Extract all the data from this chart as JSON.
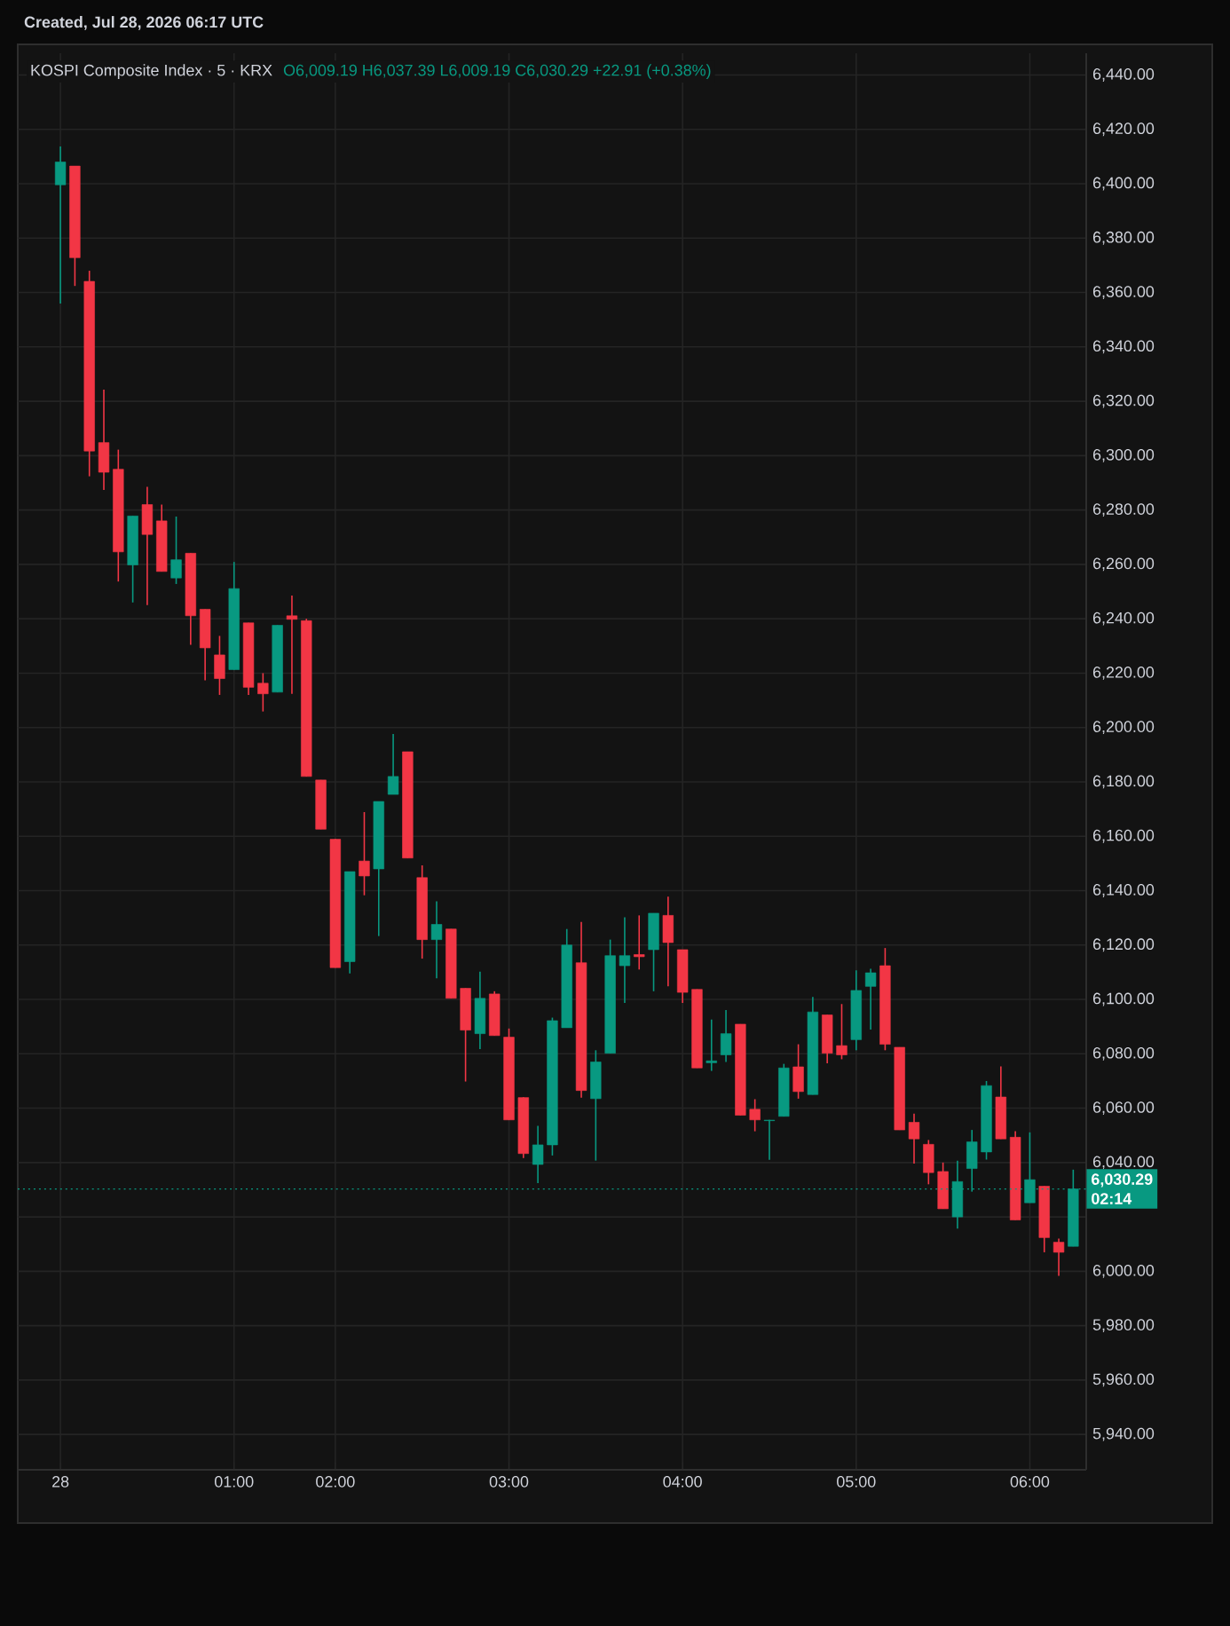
{
  "chart_data": {
    "type": "candlestick",
    "title": "KOSPI Composite Index · 5 · KRX",
    "subtitle": "O6,009.19 H6,037.39 L6,009.19 C6,030.29 +22.91 (+0.38%)",
    "annotations": [
      "Created, Jul 28, 2026 06:17 UTC",
      "02:14"
    ],
    "categories": [
      "28",
      null,
      null,
      null,
      null,
      null,
      null,
      null,
      null,
      null,
      null,
      null,
      "01:00",
      null,
      null,
      null,
      null,
      null,
      null,
      "02:00",
      null,
      null,
      null,
      null,
      null,
      null,
      null,
      null,
      null,
      null,
      null,
      "03:00",
      null,
      null,
      null,
      null,
      null,
      null,
      null,
      null,
      null,
      null,
      null,
      "04:00",
      null,
      null,
      null,
      null,
      null,
      null,
      null,
      null,
      null,
      null,
      null,
      "05:00",
      null,
      null,
      null,
      null,
      null,
      null,
      null,
      null,
      null,
      null,
      null,
      "06:00",
      null,
      null,
      null
    ],
    "ohlc": [
      [
        6399.6,
        6413.7,
        6355.9,
        6408.0
      ],
      [
        6406.5,
        6406.5,
        6362.4,
        6372.8
      ],
      [
        6364.1,
        6368.0,
        6292.4,
        6301.7
      ],
      [
        6304.8,
        6324.3,
        6287.4,
        6293.9
      ],
      [
        6295.0,
        6302.2,
        6253.7,
        6264.6
      ],
      [
        6259.8,
        6277.8,
        6246.0,
        6277.8
      ],
      [
        6282.0,
        6288.5,
        6245.0,
        6271.0
      ],
      [
        6276.0,
        6282.0,
        6257.4,
        6257.4
      ],
      [
        6255.0,
        6277.6,
        6252.8,
        6261.7
      ],
      [
        6264.1,
        6264.1,
        6230.4,
        6241.1
      ],
      [
        6243.5,
        6243.5,
        6217.4,
        6229.3
      ],
      [
        6226.7,
        6233.7,
        6212.0,
        6218.0
      ],
      [
        6221.3,
        6260.9,
        6221.3,
        6251.1
      ],
      [
        6238.5,
        6238.5,
        6212.0,
        6214.8
      ],
      [
        6216.3,
        6220.0,
        6205.9,
        6212.4
      ],
      [
        6213.0,
        6237.6,
        6213.0,
        6237.6
      ],
      [
        6241.1,
        6248.5,
        6212.4,
        6239.8
      ],
      [
        6239.3,
        6240.0,
        6182.0,
        6182.0
      ],
      [
        6180.7,
        6180.7,
        6162.6,
        6162.6
      ],
      [
        6158.9,
        6159.0,
        6111.7,
        6111.7
      ],
      [
        6113.9,
        6147.0,
        6109.6,
        6147.0
      ],
      [
        6150.9,
        6168.9,
        6138.3,
        6145.4
      ],
      [
        6148.0,
        6172.8,
        6123.3,
        6172.8
      ],
      [
        6175.4,
        6197.6,
        6175.4,
        6182.0
      ],
      [
        6191.1,
        6191.1,
        6152.0,
        6152.0
      ],
      [
        6144.8,
        6149.3,
        6115.0,
        6122.0
      ],
      [
        6122.0,
        6136.1,
        6107.8,
        6127.6
      ],
      [
        6125.9,
        6125.9,
        6100.4,
        6100.4
      ],
      [
        6104.1,
        6104.1,
        6069.8,
        6088.7
      ],
      [
        6087.4,
        6110.2,
        6081.7,
        6100.4
      ],
      [
        6102.0,
        6103.0,
        6086.7,
        6086.7
      ],
      [
        6086.1,
        6089.3,
        6055.7,
        6055.7
      ],
      [
        6063.9,
        6064.0,
        6041.7,
        6043.3
      ],
      [
        6039.3,
        6053.5,
        6032.4,
        6046.5
      ],
      [
        6046.5,
        6093.3,
        6042.6,
        6092.2
      ],
      [
        6089.6,
        6125.9,
        6089.6,
        6120.0
      ],
      [
        6113.5,
        6128.5,
        6063.9,
        6066.5
      ],
      [
        6063.5,
        6081.3,
        6040.7,
        6077.0
      ],
      [
        6080.2,
        6122.0,
        6080.2,
        6116.1
      ],
      [
        6112.4,
        6130.2,
        6098.7,
        6116.1
      ],
      [
        6116.5,
        6130.9,
        6111.0,
        6115.7
      ],
      [
        6118.3,
        6131.7,
        6103.0,
        6131.7
      ],
      [
        6130.9,
        6137.8,
        6104.8,
        6120.9
      ],
      [
        6118.3,
        6118.3,
        6098.7,
        6102.6
      ],
      [
        6103.7,
        6103.7,
        6074.8,
        6074.8
      ],
      [
        6076.7,
        6092.6,
        6073.7,
        6077.4
      ],
      [
        6079.6,
        6096.1,
        6077.0,
        6087.4
      ],
      [
        6090.9,
        6090.9,
        6057.4,
        6057.4
      ],
      [
        6059.6,
        6063.3,
        6051.5,
        6055.7
      ],
      [
        6055.4,
        6055.7,
        6041.0,
        6055.6
      ],
      [
        6057.0,
        6076.3,
        6057.0,
        6074.8
      ],
      [
        6075.2,
        6083.5,
        6063.5,
        6066.1
      ],
      [
        6065.0,
        6100.9,
        6065.0,
        6095.4
      ],
      [
        6094.3,
        6094.3,
        6076.5,
        6080.2
      ],
      [
        6083.0,
        6098.3,
        6078.0,
        6079.6
      ],
      [
        6085.2,
        6110.7,
        6081.3,
        6103.3
      ],
      [
        6104.8,
        6111.3,
        6088.9,
        6109.8
      ],
      [
        6112.4,
        6118.9,
        6081.3,
        6083.5
      ],
      [
        6082.4,
        6082.4,
        6052.0,
        6052.0
      ],
      [
        6054.8,
        6058.0,
        6039.6,
        6048.7
      ],
      [
        6046.7,
        6048.3,
        6032.0,
        6036.3
      ],
      [
        6036.7,
        6040.0,
        6023.0,
        6023.0
      ],
      [
        6020.0,
        6040.7,
        6015.7,
        6033.0
      ],
      [
        6037.8,
        6052.0,
        6029.3,
        6047.6
      ],
      [
        6043.9,
        6070.0,
        6041.1,
        6068.3
      ],
      [
        6064.1,
        6075.4,
        6048.7,
        6048.7
      ],
      [
        6049.3,
        6051.5,
        6018.9,
        6018.9
      ],
      [
        6025.2,
        6051.1,
        6025.2,
        6033.7
      ],
      [
        6031.3,
        6031.3,
        6007.0,
        6012.4
      ],
      [
        6010.7,
        6012.0,
        5998.3,
        6007.0
      ],
      [
        6009.19,
        6037.39,
        6009.19,
        6030.29
      ]
    ],
    "colors": [
      "#089981",
      "#f23645",
      "#f23645",
      "#f23645",
      "#f23645",
      "#089981",
      "#f23645",
      "#f23645",
      "#089981",
      "#f23645",
      "#f23645",
      "#f23645",
      "#089981",
      "#f23645",
      "#f23645",
      "#089981",
      "#f23645",
      "#f23645",
      "#f23645",
      "#f23645",
      "#089981",
      "#f23645",
      "#089981",
      "#089981",
      "#f23645",
      "#f23645",
      "#089981",
      "#f23645",
      "#f23645",
      "#089981",
      "#f23645",
      "#f23645",
      "#f23645",
      "#089981",
      "#089981",
      "#089981",
      "#f23645",
      "#089981",
      "#089981",
      "#089981",
      "#f23645",
      "#089981",
      "#f23645",
      "#f23645",
      "#f23645",
      "#089981",
      "#089981",
      "#f23645",
      "#f23645",
      "#089981",
      "#089981",
      "#f23645",
      "#089981",
      "#f23645",
      "#f23645",
      "#089981",
      "#089981",
      "#f23645",
      "#f23645",
      "#f23645",
      "#f23645",
      "#f23645",
      "#089981",
      "#089981",
      "#089981",
      "#f23645",
      "#f23645",
      "#089981",
      "#f23645",
      "#f23645",
      "#089981"
    ],
    "ylim": [
      5927,
      6448
    ],
    "yticks": [
      {
        "value": 5940,
        "label": "5,940.00"
      },
      {
        "value": 5960,
        "label": "5,960.00"
      },
      {
        "value": 5980,
        "label": "5,980.00"
      },
      {
        "value": 6000,
        "label": "6,000.00"
      },
      {
        "value": 6020,
        "label": null
      },
      {
        "value": 6040,
        "label": "6,040.00"
      },
      {
        "value": 6060,
        "label": "6,060.00"
      },
      {
        "value": 6080,
        "label": "6,080.00"
      },
      {
        "value": 6100,
        "label": "6,100.00"
      },
      {
        "value": 6120,
        "label": "6,120.00"
      },
      {
        "value": 6140,
        "label": "6,140.00"
      },
      {
        "value": 6160,
        "label": "6,160.00"
      },
      {
        "value": 6180,
        "label": "6,180.00"
      },
      {
        "value": 6200,
        "label": "6,200.00"
      },
      {
        "value": 6220,
        "label": "6,220.00"
      },
      {
        "value": 6240,
        "label": "6,240.00"
      },
      {
        "value": 6260,
        "label": "6,260.00"
      },
      {
        "value": 6280,
        "label": "6,280.00"
      },
      {
        "value": 6300,
        "label": "6,300.00"
      },
      {
        "value": 6320,
        "label": "6,320.00"
      },
      {
        "value": 6340,
        "label": "6,340.00"
      },
      {
        "value": 6360,
        "label": "6,360.00"
      },
      {
        "value": 6380,
        "label": "6,380.00"
      },
      {
        "value": 6400,
        "label": "6,400.00"
      },
      {
        "value": 6420,
        "label": "6,420.00"
      },
      {
        "value": 6440,
        "label": "6,440.00"
      }
    ],
    "ref_lines": [
      {
        "axis": "y",
        "value": 6030.29,
        "label": "6,030.29",
        "color": "#089981",
        "line_style": "dotted"
      }
    ],
    "grid": true
  }
}
